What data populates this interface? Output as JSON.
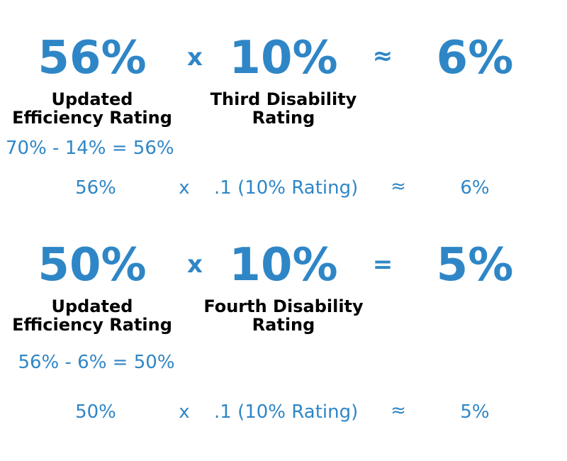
{
  "colors": {
    "accent": "#2f86c6",
    "label": "#000000",
    "background": "#ffffff"
  },
  "step_three": {
    "efficiency_value": "56%",
    "times_symbol": "x",
    "disability_value": "10%",
    "result_symbol": "≈",
    "result_value": "6%",
    "efficiency_label_line1": "Updated",
    "efficiency_label_line2": "Efficiency Rating",
    "disability_label_line1": "Third Disability",
    "disability_label_line2": "Rating",
    "derivation": "70% - 14% = 56%",
    "detail": {
      "efficiency": "56%",
      "times": "x",
      "factor": ".1 (10% Rating)",
      "approx": "≈",
      "result": "6%"
    }
  },
  "step_four": {
    "efficiency_value": "50%",
    "times_symbol": "x",
    "disability_value": "10%",
    "result_symbol": "=",
    "result_value": "5%",
    "efficiency_label_line1": "Updated",
    "efficiency_label_line2": "Efficiency Rating",
    "disability_label_line1": "Fourth Disability",
    "disability_label_line2": "Rating",
    "derivation": "56% - 6% = 50%",
    "detail": {
      "efficiency": "50%",
      "times": "x",
      "factor": ".1 (10% Rating)",
      "approx": "≈",
      "result": "5%"
    }
  }
}
